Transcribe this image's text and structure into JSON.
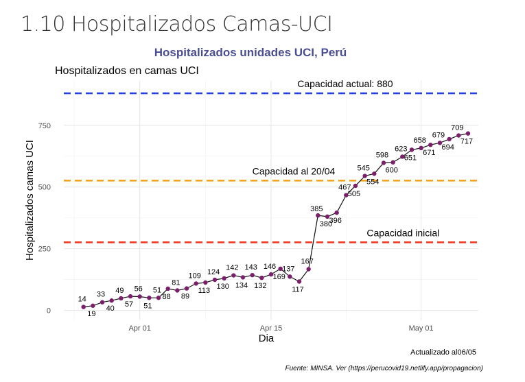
{
  "page": {
    "heading": "1.10 Hospitalizados Camas-UCI"
  },
  "chart_data": {
    "type": "line",
    "title": "Hospitalizados unidades UCI, Perú",
    "subtitle": "Hospitalizados en camas UCI",
    "xlabel": "Dia",
    "ylabel": "Hospitalizados camas UCI",
    "caption_update": "Actualizado al06/05",
    "caption_source": "Fuente: MINSA. Ver (https://perucovid19.netlify.app/propagacion)",
    "x_day_range": [
      -8.1,
      36.1
    ],
    "ylim": [
      -40,
      930
    ],
    "x_ticks": [
      {
        "day": 0,
        "label": "Apr 01"
      },
      {
        "day": 14,
        "label": "Apr 15"
      },
      {
        "day": 30,
        "label": "May 01"
      }
    ],
    "y_ticks": [
      {
        "value": 0,
        "label": "0"
      },
      {
        "value": 250,
        "label": "250"
      },
      {
        "value": 500,
        "label": "500"
      },
      {
        "value": 750,
        "label": "750"
      }
    ],
    "grid": true,
    "point_color": "#7b1f6a",
    "line_color": "#111111",
    "series": [
      {
        "name": "Hospitalizados camas UCI",
        "x": [
          -6,
          -5,
          -4,
          -3,
          -2,
          -1,
          0,
          1,
          2,
          3,
          4,
          5,
          6,
          7,
          8,
          9,
          10,
          11,
          12,
          13,
          14,
          15,
          16,
          17,
          18,
          19,
          20,
          21,
          22,
          23,
          24,
          25,
          26,
          27,
          28,
          29,
          30,
          31,
          32,
          33,
          34,
          35
        ],
        "values": [
          14,
          19,
          33,
          40,
          49,
          57,
          56,
          51,
          51,
          88,
          81,
          89,
          109,
          113,
          124,
          130,
          142,
          134,
          143,
          132,
          146,
          169,
          137,
          117,
          167,
          385,
          380,
          396,
          467,
          505,
          545,
          554,
          598,
          600,
          623,
          651,
          658,
          671,
          679,
          694,
          709,
          717
        ]
      }
    ],
    "reference_lines": [
      {
        "label": "Capacidad actual: 880",
        "value": 880,
        "color": "#1f3fe8"
      },
      {
        "label": "Capacidad al 20/04",
        "value": 526,
        "color": "#f7a21b"
      },
      {
        "label": "Capacidad inicial",
        "value": 276,
        "color": "#f23a1f"
      }
    ]
  }
}
